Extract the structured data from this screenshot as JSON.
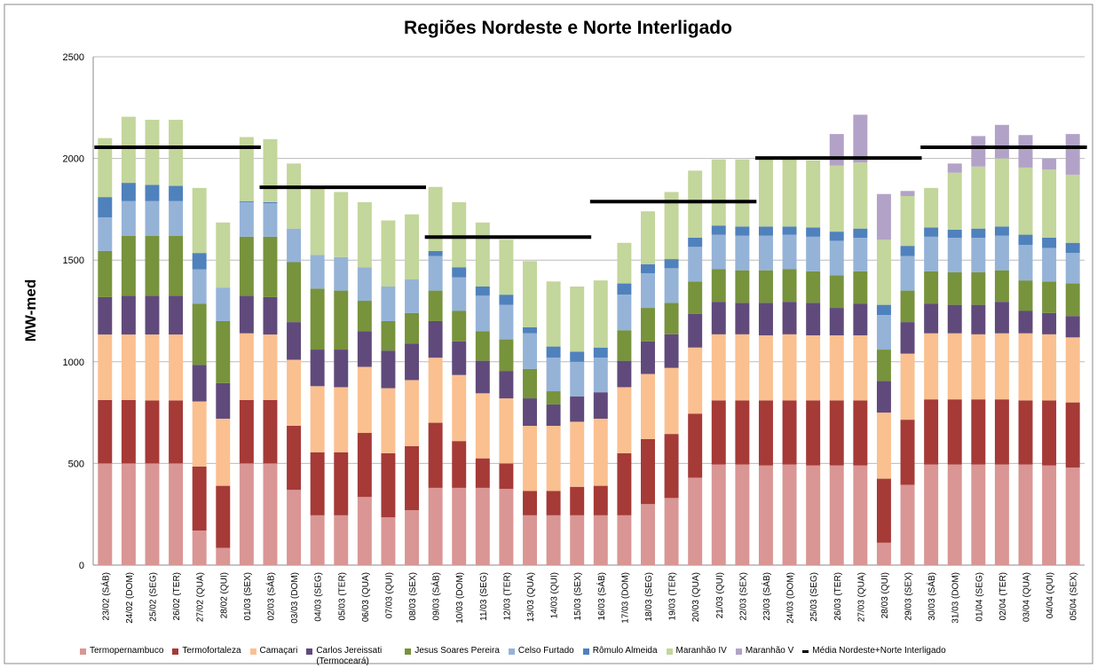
{
  "chart_data": {
    "type": "bar",
    "stacked": true,
    "title": "Regiões Nordeste e Norte Interligado",
    "y_label": "MW-med",
    "categories": [
      "23/02 (SÁB)",
      "24/02 (DOM)",
      "25/02 (SEG)",
      "26/02 (TER)",
      "27/02 (QUA)",
      "28/02 (QUI)",
      "01/03 (SEX)",
      "02/03 (SÁB)",
      "03/03 (DOM)",
      "04/03 (SEG)",
      "05/03 (TER)",
      "06/03 (QUA)",
      "07/03 (QUI)",
      "08/03 (SEX)",
      "09/03 (SÁB)",
      "10/03 (DOM)",
      "11/03 (SEG)",
      "12/03 (TER)",
      "13/03 (QUA)",
      "14/03 (QUI)",
      "15/03 (SEX)",
      "16/03 (SÁB)",
      "17/03 (DOM)",
      "18/03 (SEG)",
      "19/03 (TER)",
      "20/03 (QUA)",
      "21/03 (QUI)",
      "22/03 (SEX)",
      "23/03 (SÁB)",
      "24/03 (DOM)",
      "25/03 (SEG)",
      "26/03 (TER)",
      "27/03 (QUA)",
      "28/03 (QUI)",
      "29/03 (SEX)",
      "30/03 (SÁB)",
      "31/03 (DOM)",
      "01/04 (SEG)",
      "02/04 (TER)",
      "03/04 (QUA)",
      "04/04 (QUI)",
      "05/04 (SEX)"
    ],
    "series": [
      {
        "name": "Termopernambuco",
        "color": "#d99694",
        "values": [
          500,
          500,
          500,
          500,
          170,
          85,
          500,
          500,
          370,
          245,
          245,
          335,
          235,
          270,
          380,
          380,
          380,
          375,
          245,
          245,
          245,
          245,
          245,
          300,
          330,
          430,
          495,
          495,
          490,
          495,
          490,
          490,
          490,
          110,
          395,
          495,
          495,
          495,
          495,
          495,
          490,
          480
        ]
      },
      {
        "name": "Termofortaleza",
        "color": "#a53a37",
        "values": [
          312,
          312,
          310,
          310,
          315,
          305,
          312,
          312,
          315,
          310,
          310,
          315,
          315,
          315,
          320,
          230,
          145,
          125,
          120,
          120,
          140,
          145,
          305,
          320,
          315,
          315,
          315,
          315,
          320,
          315,
          320,
          320,
          320,
          315,
          320,
          320,
          320,
          320,
          320,
          315,
          320,
          320
        ]
      },
      {
        "name": "Camaçari",
        "color": "#fac090",
        "values": [
          322,
          322,
          324,
          324,
          320,
          330,
          328,
          322,
          325,
          325,
          320,
          325,
          320,
          325,
          320,
          325,
          320,
          320,
          320,
          320,
          320,
          330,
          325,
          320,
          325,
          325,
          325,
          325,
          320,
          325,
          320,
          320,
          320,
          325,
          325,
          325,
          325,
          320,
          325,
          330,
          325,
          320
        ]
      },
      {
        "name": "Carlos Jereissati (Termoceará)",
        "color": "#604a7b",
        "values": [
          184,
          191,
          191,
          191,
          180,
          175,
          185,
          184,
          185,
          180,
          185,
          175,
          185,
          180,
          180,
          165,
          160,
          135,
          135,
          105,
          125,
          130,
          130,
          160,
          165,
          165,
          160,
          155,
          160,
          160,
          160,
          135,
          155,
          155,
          155,
          145,
          140,
          145,
          155,
          110,
          105,
          105
        ]
      },
      {
        "name": "Jesus Soares Pereira",
        "color": "#77933c",
        "values": [
          227,
          295,
          295,
          295,
          300,
          305,
          290,
          297,
          295,
          300,
          290,
          150,
          145,
          150,
          150,
          150,
          145,
          155,
          145,
          65,
          0,
          0,
          150,
          165,
          155,
          160,
          160,
          160,
          160,
          160,
          155,
          160,
          160,
          155,
          155,
          160,
          160,
          160,
          155,
          150,
          155,
          160
        ]
      },
      {
        "name": "Celso Furtado",
        "color": "#95b3d7",
        "values": [
          165,
          170,
          170,
          170,
          170,
          165,
          170,
          165,
          165,
          165,
          165,
          165,
          170,
          165,
          170,
          165,
          175,
          170,
          175,
          165,
          170,
          170,
          175,
          170,
          170,
          170,
          170,
          170,
          170,
          170,
          170,
          170,
          165,
          170,
          170,
          170,
          170,
          170,
          170,
          175,
          165,
          150
        ]
      },
      {
        "name": "Rômulo Almeida",
        "color": "#4f81bd",
        "values": [
          100,
          90,
          80,
          75,
          80,
          0,
          5,
          5,
          0,
          0,
          0,
          0,
          0,
          0,
          25,
          50,
          45,
          50,
          30,
          55,
          50,
          50,
          55,
          45,
          45,
          45,
          45,
          45,
          45,
          40,
          45,
          45,
          45,
          50,
          50,
          45,
          40,
          45,
          45,
          50,
          50,
          50
        ]
      },
      {
        "name": "Maranhão IV",
        "color": "#c3d69b",
        "values": [
          290,
          325,
          320,
          325,
          320,
          320,
          315,
          310,
          320,
          325,
          320,
          320,
          325,
          320,
          315,
          320,
          315,
          270,
          325,
          320,
          320,
          330,
          200,
          260,
          330,
          330,
          325,
          330,
          330,
          330,
          330,
          325,
          325,
          320,
          245,
          195,
          280,
          305,
          335,
          330,
          335,
          335
        ]
      },
      {
        "name": "Maranhão V",
        "color": "#b3a2c7",
        "values": [
          0,
          0,
          0,
          0,
          0,
          0,
          0,
          0,
          0,
          0,
          0,
          0,
          0,
          0,
          0,
          0,
          0,
          0,
          0,
          0,
          0,
          0,
          0,
          0,
          0,
          0,
          0,
          0,
          0,
          0,
          0,
          155,
          235,
          225,
          25,
          0,
          45,
          150,
          165,
          160,
          55,
          200
        ]
      },
      {
        "name": "Média Nordeste+Norte Interligado",
        "type": "line",
        "color": "#000000",
        "values": [
          2055,
          2055,
          2055,
          2055,
          2055,
          2055,
          2055,
          1858,
          1858,
          1858,
          1858,
          1858,
          1858,
          1858,
          1613,
          1613,
          1613,
          1613,
          1613,
          1613,
          1613,
          1788,
          1788,
          1788,
          1788,
          1788,
          1788,
          1788,
          2002,
          2002,
          2002,
          2002,
          2002,
          2002,
          2002,
          2055,
          2055,
          2055,
          2055,
          2055,
          2055,
          2055
        ]
      }
    ],
    "ylim": [
      0,
      2500
    ],
    "yticks": [
      0,
      500,
      1000,
      1500,
      2000,
      2500
    ],
    "grid": true,
    "legend": "bottom"
  }
}
